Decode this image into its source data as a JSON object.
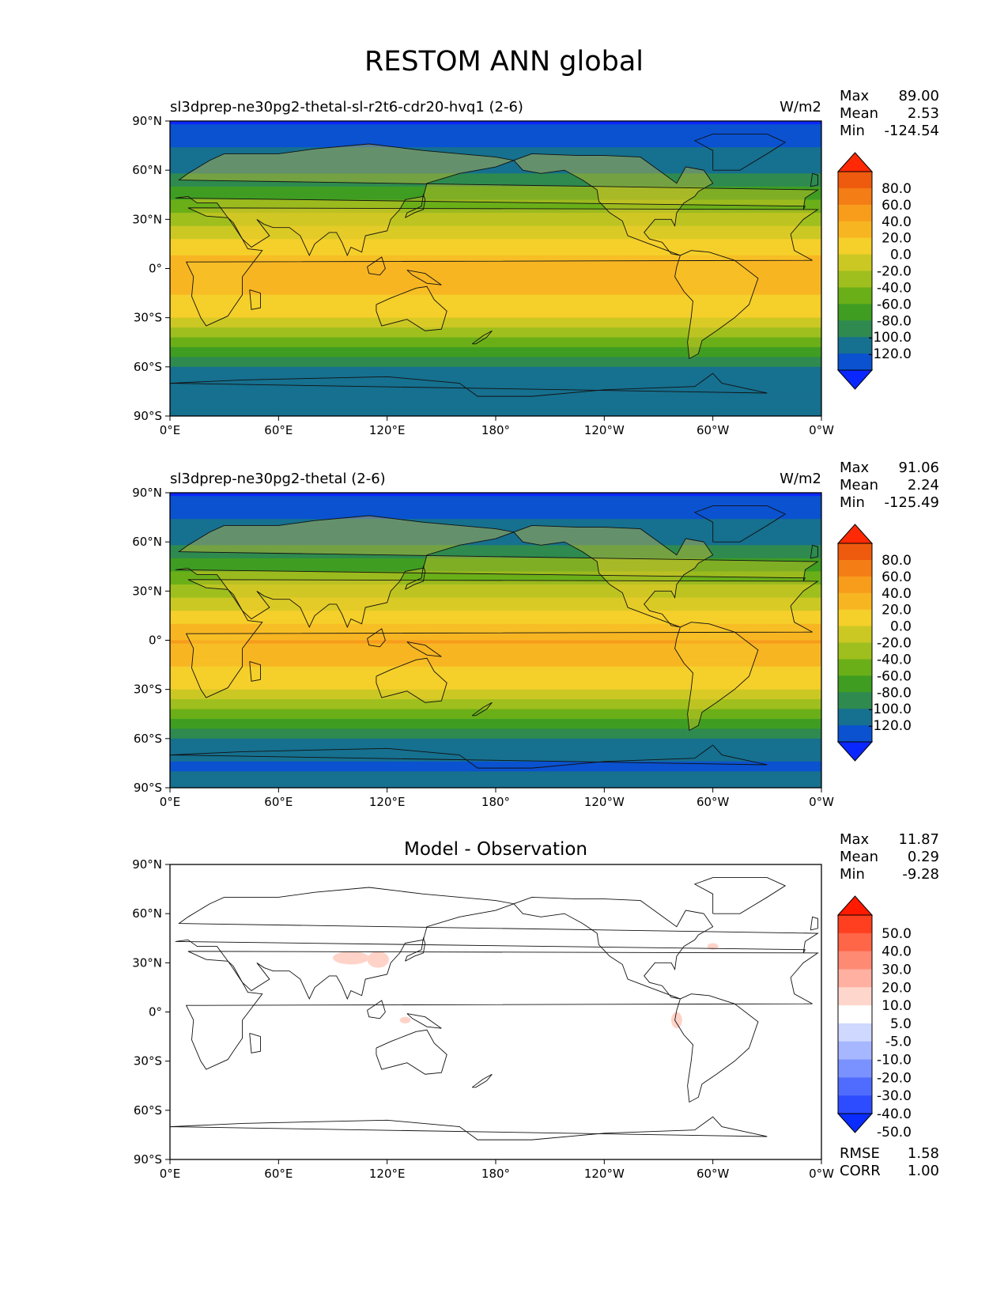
{
  "figure": {
    "title": "RESTOM ANN global"
  },
  "axes": {
    "x_ticks": [
      "0°E",
      "60°E",
      "120°E",
      "180°",
      "120°W",
      "60°W",
      "0°W"
    ],
    "y_ticks": [
      "90°N",
      "60°N",
      "30°N",
      "0°",
      "30°S",
      "60°S",
      "90°S"
    ]
  },
  "panels": [
    {
      "id": "test",
      "title_left": "sl3dprep-ne30pg2-thetal-sl-r2t6-cdr20-hvq1 (2-6)",
      "title_center": "",
      "units": "W/m2",
      "stats": [
        {
          "label": "Max",
          "value": "89.00"
        },
        {
          "label": "Mean",
          "value": "2.53"
        },
        {
          "label": "Min",
          "value": "-124.54"
        }
      ],
      "colorbar_ticks": [
        "80.0",
        "60.0",
        "40.0",
        "20.0",
        "0.0",
        "-20.0",
        "-40.0",
        "-60.0",
        "-80.0",
        "-100.0",
        "-120.0"
      ],
      "extra_stats": []
    },
    {
      "id": "ref",
      "title_left": "sl3dprep-ne30pg2-thetal (2-6)",
      "title_center": "",
      "units": "W/m2",
      "stats": [
        {
          "label": "Max",
          "value": "91.06"
        },
        {
          "label": "Mean",
          "value": "2.24"
        },
        {
          "label": "Min",
          "value": "-125.49"
        }
      ],
      "colorbar_ticks": [
        "80.0",
        "60.0",
        "40.0",
        "20.0",
        "0.0",
        "-20.0",
        "-40.0",
        "-60.0",
        "-80.0",
        "-100.0",
        "-120.0"
      ],
      "extra_stats": []
    },
    {
      "id": "diff",
      "title_left": "",
      "title_center": "Model - Observation",
      "units": "",
      "stats": [
        {
          "label": "Max",
          "value": "11.87"
        },
        {
          "label": "Mean",
          "value": "0.29"
        },
        {
          "label": "Min",
          "value": "-9.28"
        }
      ],
      "colorbar_ticks": [
        "50.0",
        "40.0",
        "30.0",
        "20.0",
        "10.0",
        "5.0",
        "-5.0",
        "-10.0",
        "-20.0",
        "-30.0",
        "-40.0",
        "-50.0"
      ],
      "extra_stats": [
        {
          "label": "RMSE",
          "value": "1.58"
        },
        {
          "label": "CORR",
          "value": "1.00"
        }
      ]
    }
  ],
  "colors": {
    "field_scale": [
      "#0b27ff",
      "#0a52d0",
      "#16708f",
      "#2e8a4f",
      "#3f9d22",
      "#6aaf18",
      "#9ebf1d",
      "#cbc824",
      "#f5cf2a",
      "#f8b522",
      "#f89c1c",
      "#f47d15",
      "#ee5a0e",
      "#ff2a05"
    ],
    "diff_scale": [
      "#0a2cff",
      "#2d4cff",
      "#4f6cff",
      "#7a92ff",
      "#a6b6ff",
      "#cfd8ff",
      "#ffffff",
      "#ffd6cc",
      "#ffb0a0",
      "#ff8a73",
      "#ff6547",
      "#ff3f1f",
      "#ff1a00"
    ]
  },
  "chart_data": [
    {
      "type": "heatmap",
      "title": "sl3dprep-ne30pg2-thetal-sl-r2t6-cdr20-hvq1 (2-6)",
      "units": "W/m2",
      "xlim": [
        0,
        360
      ],
      "ylim": [
        -90,
        90
      ],
      "levels": [
        -120,
        -100,
        -80,
        -60,
        -40,
        -20,
        0,
        20,
        40,
        60,
        80
      ],
      "zonal_profile": {
        "lat": [
          90,
          75,
          60,
          45,
          30,
          15,
          0,
          -15,
          -30,
          -45,
          -60,
          -75,
          -90
        ],
        "value": [
          -120,
          -100,
          -80,
          -45,
          -10,
          30,
          60,
          40,
          20,
          -30,
          -80,
          -100,
          -90
        ]
      },
      "stats": {
        "max": 89.0,
        "mean": 2.53,
        "min": -124.54
      }
    },
    {
      "type": "heatmap",
      "title": "sl3dprep-ne30pg2-thetal (2-6)",
      "units": "W/m2",
      "xlim": [
        0,
        360
      ],
      "ylim": [
        -90,
        90
      ],
      "levels": [
        -120,
        -100,
        -80,
        -60,
        -40,
        -20,
        0,
        20,
        40,
        60,
        80
      ],
      "zonal_profile": {
        "lat": [
          90,
          75,
          60,
          45,
          30,
          15,
          0,
          -15,
          -30,
          -45,
          -60,
          -75,
          -90
        ],
        "value": [
          -122,
          -100,
          -80,
          -45,
          -10,
          30,
          62,
          40,
          20,
          -30,
          -80,
          -102,
          -92
        ]
      },
      "stats": {
        "max": 91.06,
        "mean": 2.24,
        "min": -125.49
      }
    },
    {
      "type": "heatmap",
      "title": "Model - Observation",
      "xlim": [
        0,
        360
      ],
      "ylim": [
        -90,
        90
      ],
      "levels": [
        -50,
        -40,
        -30,
        -20,
        -10,
        -5,
        5,
        10,
        20,
        30,
        40,
        50
      ],
      "stats": {
        "max": 11.87,
        "mean": 0.29,
        "min": -9.28,
        "rmse": 1.58,
        "corr": 1.0
      }
    }
  ]
}
